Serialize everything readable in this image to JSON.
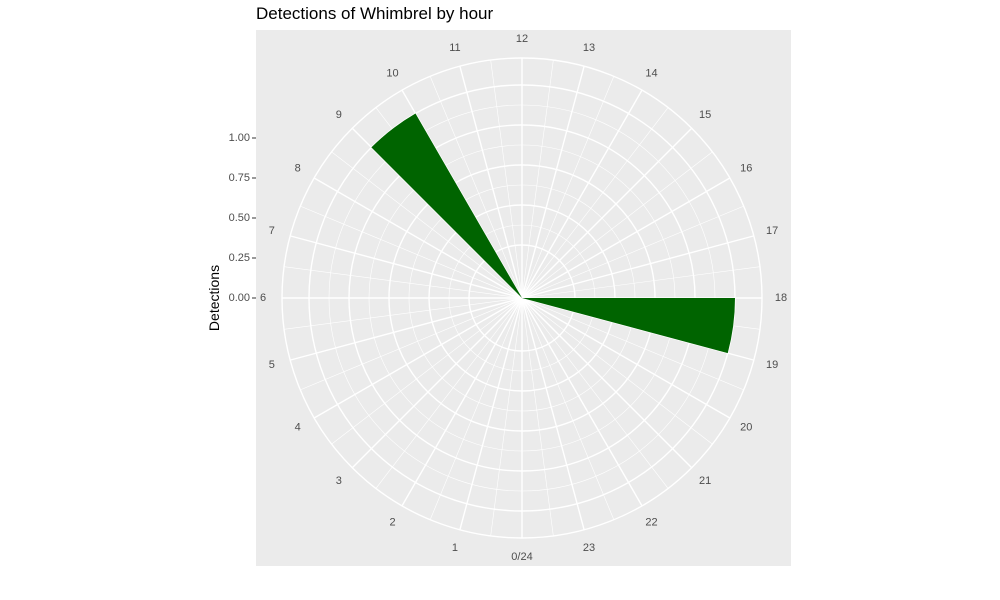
{
  "chart_data": {
    "type": "bar",
    "coord": "polar",
    "title": "Detections of Whimbrel by hour",
    "xlabel": "",
    "ylabel": "Detections",
    "x_ticks": [
      "0/24",
      "1",
      "2",
      "3",
      "4",
      "5",
      "6",
      "7",
      "8",
      "9",
      "10",
      "11",
      "12",
      "13",
      "14",
      "15",
      "16",
      "17",
      "18",
      "19",
      "20",
      "21",
      "22",
      "23"
    ],
    "y_ticks": [
      "0.00",
      "0.25",
      "0.50",
      "0.75",
      "1.00"
    ],
    "ylim": [
      0,
      1.0
    ],
    "categories": [
      9,
      18
    ],
    "values": [
      1,
      1
    ],
    "bar_color": "#006400",
    "panel_color": "#EBEBEB",
    "grid_color": "#FFFFFF"
  }
}
